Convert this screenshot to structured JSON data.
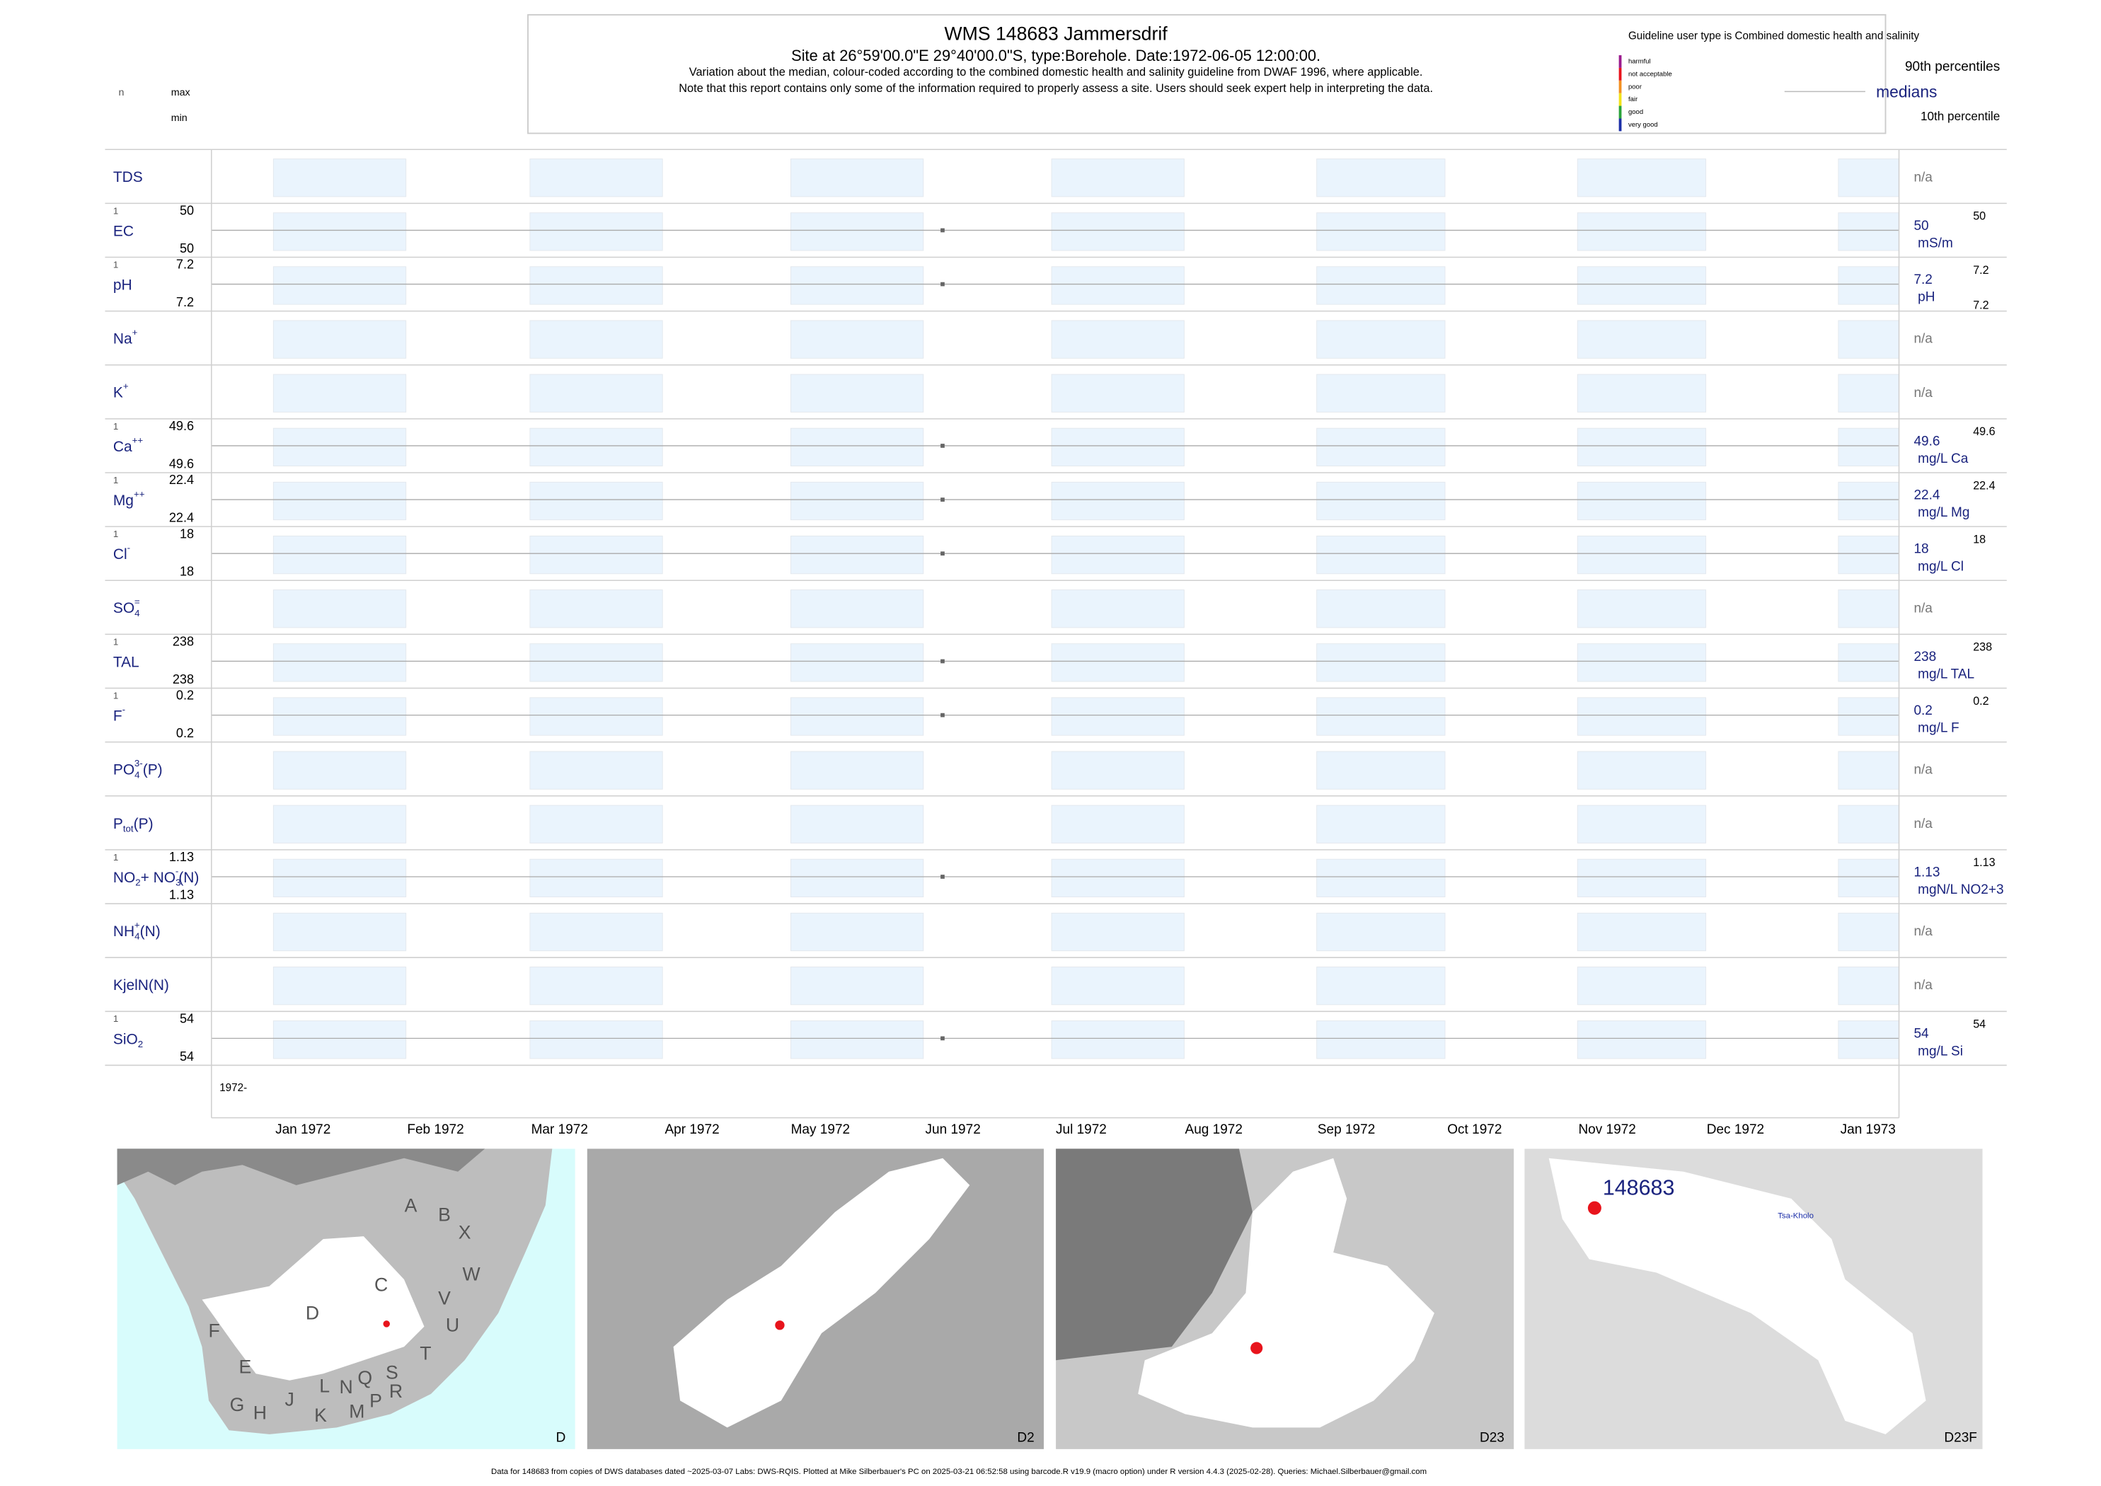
{
  "header": {
    "title": "WMS 148683  Jammersdrif",
    "subtitle": [
      "Site at 26°59'00.0\"E 29°40'00.0\"S, type:Borehole. Date:",
      "1972-06-05 12:00:00",
      "."
    ],
    "notes": [
      "Variation about the median,  colour-coded according to the combined domestic health and salinity guideline from DWAF 1996, where applicable.",
      "Note that this report contains only some of the information required to properly assess a site. Users should seek expert help in interpreting the data."
    ]
  },
  "key": {
    "n": "n",
    "max": "max",
    "min": "min"
  },
  "legend": {
    "title": "Guideline user type is Combined domestic health and salinity",
    "categories": [
      {
        "label": "harmful",
        "color": "#9b1b8e"
      },
      {
        "label": "not acceptable",
        "color": "#e8141c"
      },
      {
        "label": "poor",
        "color": "#f39020"
      },
      {
        "label": "fair",
        "color": "#f2e21a"
      },
      {
        "label": "good",
        "color": "#2aa33a"
      },
      {
        "label": "very good",
        "color": "#1c2fa8"
      }
    ],
    "p90": "90th percentiles",
    "median": "medians",
    "p10": "10th percentile"
  },
  "rows": [
    {
      "label": [
        {
          "t": "TDS"
        }
      ],
      "na": "n/a"
    },
    {
      "label": [
        {
          "t": "EC"
        }
      ],
      "n": 1,
      "max": 50,
      "min": 50,
      "median": 50,
      "unit": "mS/m",
      "right_max": 50
    },
    {
      "label": [
        {
          "t": "pH"
        }
      ],
      "n": 1,
      "max": 7.2,
      "min": 7.2,
      "median": 7.2,
      "unit": "pH",
      "right_max": 7.2,
      "right_min": 7.2
    },
    {
      "label": [
        {
          "t": "Na"
        },
        {
          "sup": "+"
        }
      ],
      "na": "n/a"
    },
    {
      "label": [
        {
          "t": "K"
        },
        {
          "sup": "+"
        }
      ],
      "na": "n/a"
    },
    {
      "label": [
        {
          "t": "Ca"
        },
        {
          "sup": "++"
        }
      ],
      "n": 1,
      "max": 49.6,
      "min": 49.6,
      "median": 49.6,
      "unit": "mg/L Ca",
      "right_max": 49.6
    },
    {
      "label": [
        {
          "t": "Mg"
        },
        {
          "sup": "++"
        }
      ],
      "n": 1,
      "max": 22.4,
      "min": 22.4,
      "median": 22.4,
      "unit": "mg/L Mg",
      "right_max": 22.4
    },
    {
      "label": [
        {
          "t": "Cl"
        },
        {
          "sup": "-"
        }
      ],
      "n": 1,
      "max": 18,
      "min": 18,
      "median": 18,
      "unit": "mg/L Cl",
      "right_max": 18
    },
    {
      "label": [
        {
          "t": "SO"
        },
        {
          "sub": "4"
        },
        {
          "sup": "="
        }
      ],
      "na": "n/a"
    },
    {
      "label": [
        {
          "t": "TAL"
        }
      ],
      "n": 1,
      "max": 238,
      "min": 238,
      "median": 238,
      "unit": "mg/L TAL",
      "right_max": 238
    },
    {
      "label": [
        {
          "t": "F"
        },
        {
          "sup": "-"
        }
      ],
      "n": 1,
      "max": 0.2,
      "min": 0.2,
      "median": 0.2,
      "unit": "mg/L F",
      "right_max": 0.2
    },
    {
      "label": [
        {
          "t": "PO"
        },
        {
          "sub": "4"
        },
        {
          "sup": "3-"
        },
        {
          "t": "(P)"
        }
      ],
      "na": "n/a"
    },
    {
      "label": [
        {
          "t": "P"
        },
        {
          "sub": "tot"
        },
        {
          "t": "(P)"
        }
      ],
      "na": "n/a"
    },
    {
      "label": [
        {
          "t": "NO"
        },
        {
          "sub": "2"
        },
        {
          "t": "+ NO"
        },
        {
          "sub": "3"
        },
        {
          "sup": "-"
        },
        {
          "t": "(N)"
        }
      ],
      "n": 1,
      "max": 1.13,
      "min": 1.13,
      "median": 1.13,
      "unit": "mgN/L NO2+3",
      "right_max": 1.13
    },
    {
      "label": [
        {
          "t": "NH"
        },
        {
          "sub": "4"
        },
        {
          "sup": "+"
        },
        {
          "t": "(N)"
        }
      ],
      "na": "n/a"
    },
    {
      "label": [
        {
          "t": "KjelN(N)"
        }
      ],
      "na": "n/a"
    },
    {
      "label": [
        {
          "t": "SiO"
        },
        {
          "sub": "2"
        }
      ],
      "n": 1,
      "max": 54,
      "min": 54,
      "median": 54,
      "unit": "mg/L Si",
      "right_max": 54
    }
  ],
  "axis": {
    "year": "1972-",
    "months": [
      "Jan 1972",
      "Feb 1972",
      "Mar 1972",
      "Apr 1972",
      "May 1972",
      "Jun 1972",
      "Jul 1972",
      "Aug 1972",
      "Sep 1972",
      "Oct 1972",
      "Nov 1972",
      "Dec 1972",
      "Jan 1973"
    ]
  },
  "maps": [
    {
      "name": "D",
      "regions": [
        "A",
        "B",
        "X",
        "C",
        "W",
        "V",
        "U",
        "D",
        "F",
        "T",
        "E",
        "S",
        "Q",
        "L",
        "N",
        "R",
        "J",
        "P",
        "G",
        "H",
        "K",
        "M"
      ]
    },
    {
      "name": "D2"
    },
    {
      "name": "D23"
    },
    {
      "name": "D23F",
      "site": "148683",
      "place": "Tsa-Kholo"
    }
  ],
  "footer": "Data for 148683 from copies of DWS databases dated ~2025-03-07 Labs: DWS-RQIS. Plotted at Mike Silberbauer's PC on 2025-03-21 06:52:58 using barcode.R v19.9 (macro option) under R version 4.4.3 (2025-02-28). Queries: Michael.Silberbauer@gmail.com"
}
